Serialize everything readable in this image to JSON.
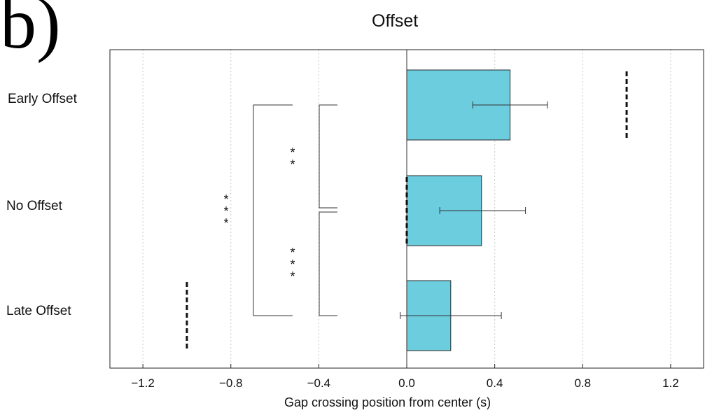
{
  "panel_label": "b)",
  "chart_data": {
    "type": "bar",
    "orientation": "horizontal",
    "title": "Offset",
    "xlabel": "Gap crossing position from center (s)",
    "ylabel": "",
    "categories": [
      "Early Offset",
      "No Offset",
      "Late Offset"
    ],
    "values": [
      0.47,
      0.34,
      0.2
    ],
    "error_low": [
      0.3,
      0.15,
      -0.03
    ],
    "error_high": [
      0.64,
      0.54,
      0.43
    ],
    "xlim": [
      -1.35,
      1.35
    ],
    "xticks": [
      -1.2,
      -0.8,
      -0.4,
      0.0,
      0.4,
      0.8,
      1.2
    ],
    "xtick_labels": [
      "−1.2",
      "−0.8",
      "−0.4",
      "0.0",
      "0.4",
      "0.8",
      "1.2"
    ],
    "grid": "vertical dotted",
    "bar_color": "#6ccddf",
    "reference_markers": [
      {
        "category": "Early Offset",
        "x": 1.0
      },
      {
        "category": "No Offset",
        "x": 0.0
      },
      {
        "category": "Late Offset",
        "x": -1.0
      }
    ],
    "significance": [
      {
        "between": [
          "Early Offset",
          "No Offset"
        ],
        "stars": "**"
      },
      {
        "between": [
          "No Offset",
          "Late Offset"
        ],
        "stars": "***"
      },
      {
        "between": [
          "Early Offset",
          "Late Offset"
        ],
        "stars": "***"
      }
    ]
  }
}
